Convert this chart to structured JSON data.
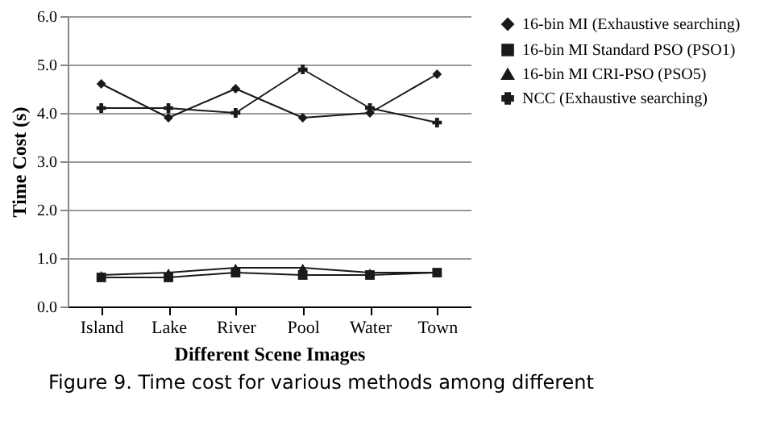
{
  "chart_data": {
    "type": "line",
    "xlabel": "Different Scene Images",
    "ylabel": "Time Cost (s)",
    "categories": [
      "Island",
      "Lake",
      "River",
      "Pool",
      "Water",
      "Town"
    ],
    "series": [
      {
        "name": "16-bin MI (Exhaustive searching)",
        "color": "#1a1a1a",
        "marker": "diamond",
        "values": [
          4.6,
          3.9,
          4.5,
          3.9,
          4.0,
          4.8
        ]
      },
      {
        "name": "16-bin MI Standard PSO (PSO1)",
        "color": "#1a1a1a",
        "marker": "square",
        "values": [
          0.6,
          0.6,
          0.7,
          0.65,
          0.65,
          0.7
        ]
      },
      {
        "name": "16-bin MI CRI-PSO (PSO5)",
        "color": "#1a1a1a",
        "marker": "triangle",
        "values": [
          0.65,
          0.7,
          0.8,
          0.8,
          0.7,
          0.7
        ]
      },
      {
        "name": "NCC  (Exhaustive searching)",
        "color": "#1a1a1a",
        "marker": "cross",
        "values": [
          4.1,
          4.1,
          4.0,
          4.9,
          4.1,
          3.8
        ]
      }
    ],
    "ylim": [
      0,
      6
    ],
    "yticks": [
      {
        "value": 0,
        "label": "0.0"
      },
      {
        "value": 1,
        "label": "1.0"
      },
      {
        "value": 2,
        "label": "2.0"
      },
      {
        "value": 3,
        "label": "3.0"
      },
      {
        "value": 4,
        "label": "4.0"
      },
      {
        "value": 5,
        "label": "5.0"
      },
      {
        "value": 6,
        "label": "6.0"
      }
    ],
    "grid": "y",
    "legend": "right",
    "annotations": [
      "Figure 9. Time cost for various methods among different"
    ]
  }
}
